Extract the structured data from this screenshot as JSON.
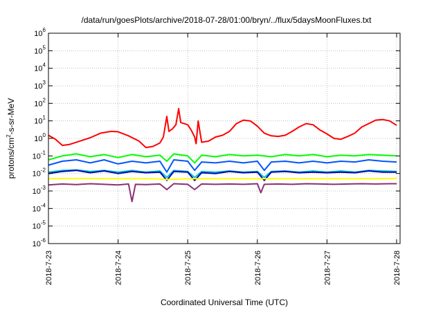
{
  "chart_data": {
    "type": "line",
    "title": "/data/run/goesPlots/archive/2018-07-28/01:00/bryn/../flux/5daysMoonFluxes.txt",
    "xlabel": "Coordinated Universal Time (UTC)",
    "ylabel_prefix": "protons/cm",
    "ylabel_exponent": "2",
    "ylabel_suffix": "-s-sr-MeV",
    "yscale": "log",
    "ylim": [
      1e-06,
      1000000.0
    ],
    "y_tick_base": "10",
    "y_tick_exponents": [
      "-6",
      "-5",
      "-4",
      "-3",
      "-2",
      "-1",
      "0",
      "1",
      "2",
      "3",
      "4",
      "5",
      "6"
    ],
    "x_tick_labels": [
      "2018-7-23",
      "2018-7-24",
      "2018-7-25",
      "2018-7-26",
      "2018-7-27",
      "2018-7-28"
    ],
    "xlim_days": [
      0,
      5.05
    ],
    "grid": true,
    "series": [
      {
        "color": "#ff0000",
        "points": [
          [
            0,
            1.5
          ],
          [
            0.1,
            0.9
          ],
          [
            0.2,
            0.4
          ],
          [
            0.3,
            0.45
          ],
          [
            0.45,
            0.7
          ],
          [
            0.6,
            1.1
          ],
          [
            0.75,
            2.0
          ],
          [
            0.9,
            2.5
          ],
          [
            1.0,
            2.4
          ],
          [
            1.15,
            1.4
          ],
          [
            1.3,
            0.7
          ],
          [
            1.4,
            0.3
          ],
          [
            1.5,
            0.35
          ],
          [
            1.6,
            0.55
          ],
          [
            1.65,
            1.2
          ],
          [
            1.7,
            18
          ],
          [
            1.73,
            2.5
          ],
          [
            1.78,
            3.5
          ],
          [
            1.83,
            6
          ],
          [
            1.87,
            50
          ],
          [
            1.9,
            8
          ],
          [
            2.0,
            6
          ],
          [
            2.05,
            3
          ],
          [
            2.1,
            1.2
          ],
          [
            2.12,
            0.5
          ],
          [
            2.15,
            10
          ],
          [
            2.2,
            0.6
          ],
          [
            2.3,
            0.7
          ],
          [
            2.4,
            1.2
          ],
          [
            2.5,
            1.5
          ],
          [
            2.6,
            2.5
          ],
          [
            2.7,
            7
          ],
          [
            2.8,
            11
          ],
          [
            2.9,
            10
          ],
          [
            3.0,
            5
          ],
          [
            3.1,
            2
          ],
          [
            3.2,
            1.4
          ],
          [
            3.3,
            1.3
          ],
          [
            3.4,
            1.5
          ],
          [
            3.5,
            2.5
          ],
          [
            3.6,
            4.5
          ],
          [
            3.7,
            7
          ],
          [
            3.8,
            6
          ],
          [
            3.9,
            3
          ],
          [
            4.0,
            1.8
          ],
          [
            4.1,
            1.0
          ],
          [
            4.2,
            0.9
          ],
          [
            4.3,
            1.3
          ],
          [
            4.4,
            2.0
          ],
          [
            4.5,
            4.5
          ],
          [
            4.6,
            7
          ],
          [
            4.7,
            11
          ],
          [
            4.8,
            12
          ],
          [
            4.9,
            10
          ],
          [
            5.0,
            5.5
          ]
        ]
      },
      {
        "color": "#00ff00",
        "points": [
          [
            0,
            0.06
          ],
          [
            0.2,
            0.1
          ],
          [
            0.4,
            0.13
          ],
          [
            0.6,
            0.09
          ],
          [
            0.8,
            0.12
          ],
          [
            1.0,
            0.08
          ],
          [
            1.2,
            0.12
          ],
          [
            1.4,
            0.09
          ],
          [
            1.6,
            0.11
          ],
          [
            1.7,
            0.05
          ],
          [
            1.8,
            0.13
          ],
          [
            2.0,
            0.1
          ],
          [
            2.1,
            0.04
          ],
          [
            2.2,
            0.11
          ],
          [
            2.4,
            0.09
          ],
          [
            2.6,
            0.12
          ],
          [
            2.8,
            0.1
          ],
          [
            3.0,
            0.11
          ],
          [
            3.2,
            0.09
          ],
          [
            3.4,
            0.12
          ],
          [
            3.6,
            0.1
          ],
          [
            3.8,
            0.12
          ],
          [
            4.0,
            0.09
          ],
          [
            4.2,
            0.11
          ],
          [
            4.4,
            0.1
          ],
          [
            4.6,
            0.12
          ],
          [
            4.8,
            0.11
          ],
          [
            5.0,
            0.1
          ]
        ]
      },
      {
        "color": "#0055ff",
        "points": [
          [
            0,
            0.03
          ],
          [
            0.2,
            0.05
          ],
          [
            0.4,
            0.06
          ],
          [
            0.6,
            0.04
          ],
          [
            0.8,
            0.06
          ],
          [
            1.0,
            0.035
          ],
          [
            1.2,
            0.05
          ],
          [
            1.4,
            0.04
          ],
          [
            1.6,
            0.05
          ],
          [
            1.7,
            0.012
          ],
          [
            1.8,
            0.06
          ],
          [
            2.0,
            0.05
          ],
          [
            2.1,
            0.015
          ],
          [
            2.2,
            0.045
          ],
          [
            2.4,
            0.04
          ],
          [
            2.6,
            0.05
          ],
          [
            2.8,
            0.04
          ],
          [
            3.0,
            0.05
          ],
          [
            3.1,
            0.015
          ],
          [
            3.2,
            0.045
          ],
          [
            3.4,
            0.05
          ],
          [
            3.6,
            0.04
          ],
          [
            3.8,
            0.05
          ],
          [
            4.0,
            0.04
          ],
          [
            4.2,
            0.05
          ],
          [
            4.4,
            0.045
          ],
          [
            4.6,
            0.06
          ],
          [
            4.8,
            0.05
          ],
          [
            5.0,
            0.045
          ]
        ]
      },
      {
        "color": "#00c8c8",
        "points": [
          [
            0,
            0.012
          ],
          [
            0.2,
            0.015
          ],
          [
            0.4,
            0.016
          ],
          [
            0.6,
            0.013
          ],
          [
            0.8,
            0.015
          ],
          [
            1.0,
            0.012
          ],
          [
            1.2,
            0.015
          ],
          [
            1.4,
            0.012
          ],
          [
            1.6,
            0.014
          ],
          [
            1.7,
            0.006
          ],
          [
            1.8,
            0.015
          ],
          [
            2.0,
            0.013
          ],
          [
            2.1,
            0.006
          ],
          [
            2.2,
            0.013
          ],
          [
            2.4,
            0.012
          ],
          [
            2.6,
            0.014
          ],
          [
            2.8,
            0.012
          ],
          [
            3.0,
            0.013
          ],
          [
            3.1,
            0.006
          ],
          [
            3.2,
            0.013
          ],
          [
            3.4,
            0.014
          ],
          [
            3.6,
            0.012
          ],
          [
            3.8,
            0.014
          ],
          [
            4.0,
            0.012
          ],
          [
            4.2,
            0.014
          ],
          [
            4.4,
            0.012
          ],
          [
            4.6,
            0.015
          ],
          [
            4.8,
            0.014
          ],
          [
            5.0,
            0.013
          ]
        ]
      },
      {
        "color": "#0000b4",
        "points": [
          [
            0,
            0.01
          ],
          [
            0.2,
            0.013
          ],
          [
            0.4,
            0.015
          ],
          [
            0.6,
            0.011
          ],
          [
            0.8,
            0.014
          ],
          [
            1.0,
            0.01
          ],
          [
            1.2,
            0.013
          ],
          [
            1.4,
            0.011
          ],
          [
            1.6,
            0.012
          ],
          [
            1.7,
            0.004
          ],
          [
            1.8,
            0.013
          ],
          [
            2.0,
            0.012
          ],
          [
            2.1,
            0.004
          ],
          [
            2.2,
            0.011
          ],
          [
            2.4,
            0.01
          ],
          [
            2.6,
            0.013
          ],
          [
            2.8,
            0.011
          ],
          [
            3.0,
            0.012
          ],
          [
            3.1,
            0.004
          ],
          [
            3.2,
            0.012
          ],
          [
            3.4,
            0.013
          ],
          [
            3.6,
            0.011
          ],
          [
            3.8,
            0.012
          ],
          [
            4.0,
            0.011
          ],
          [
            4.2,
            0.012
          ],
          [
            4.4,
            0.011
          ],
          [
            4.6,
            0.014
          ],
          [
            4.8,
            0.012
          ],
          [
            5.0,
            0.012
          ]
        ]
      },
      {
        "color": "#ffff00",
        "points": [
          [
            0,
            0.005
          ],
          [
            0.5,
            0.0052
          ],
          [
            1.0,
            0.005
          ],
          [
            1.5,
            0.005
          ],
          [
            1.7,
            0.0045
          ],
          [
            2.0,
            0.005
          ],
          [
            2.5,
            0.005
          ],
          [
            3.0,
            0.005
          ],
          [
            3.5,
            0.005
          ],
          [
            4.0,
            0.005
          ],
          [
            4.5,
            0.005
          ],
          [
            5.0,
            0.0052
          ]
        ]
      },
      {
        "color": "#8b2f74",
        "points": [
          [
            0,
            0.0022
          ],
          [
            0.2,
            0.0025
          ],
          [
            0.4,
            0.0023
          ],
          [
            0.6,
            0.0026
          ],
          [
            0.8,
            0.0024
          ],
          [
            1.0,
            0.0022
          ],
          [
            1.15,
            0.0025
          ],
          [
            1.2,
            0.00025
          ],
          [
            1.25,
            0.0024
          ],
          [
            1.4,
            0.0023
          ],
          [
            1.6,
            0.0025
          ],
          [
            1.7,
            0.0012
          ],
          [
            1.8,
            0.0026
          ],
          [
            2.0,
            0.0024
          ],
          [
            2.1,
            0.0012
          ],
          [
            2.2,
            0.0025
          ],
          [
            2.4,
            0.0024
          ],
          [
            2.6,
            0.0025
          ],
          [
            2.8,
            0.0024
          ],
          [
            3.0,
            0.0026
          ],
          [
            3.05,
            0.0008
          ],
          [
            3.1,
            0.0024
          ],
          [
            3.3,
            0.0025
          ],
          [
            3.5,
            0.0024
          ],
          [
            3.7,
            0.0026
          ],
          [
            3.9,
            0.0025
          ],
          [
            4.1,
            0.0024
          ],
          [
            4.3,
            0.0025
          ],
          [
            4.5,
            0.0026
          ],
          [
            4.7,
            0.0025
          ],
          [
            4.9,
            0.0026
          ],
          [
            5.0,
            0.0026
          ]
        ]
      }
    ]
  }
}
